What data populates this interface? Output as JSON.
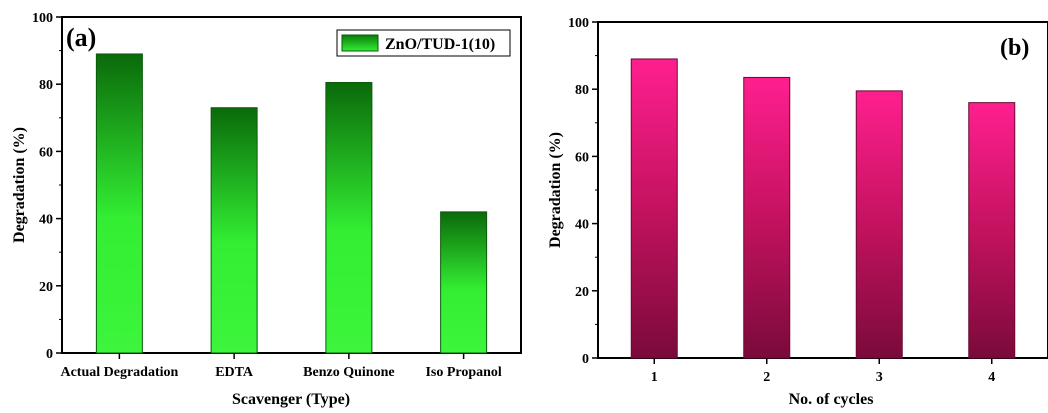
{
  "chart_data": [
    {
      "type": "bar",
      "panel_label": "(a)",
      "title": "",
      "xlabel": "Scavenger (Type)",
      "ylabel": "Degradation (%)",
      "categories": [
        "Actual Degradation",
        "EDTA",
        "Benzo Quinone",
        "Iso Propanol"
      ],
      "series": [
        {
          "name": "ZnO/TUD-1(10)",
          "values": [
            89,
            73,
            80.5,
            42
          ]
        }
      ],
      "ylim": [
        0,
        100
      ],
      "yticks": [
        0,
        20,
        40,
        60,
        80,
        100
      ],
      "grid": false,
      "legend_position": "top-right",
      "colors": {
        "bar_edge": "#0a6a0a",
        "bar_mid": "#33ee33",
        "bar_dark": "#0b7a0b"
      }
    },
    {
      "type": "bar",
      "panel_label": "(b)",
      "title": "",
      "xlabel": "No. of cycles",
      "ylabel": "Degradation (%)",
      "categories": [
        "1",
        "2",
        "3",
        "4"
      ],
      "series": [
        {
          "values": [
            89,
            83.5,
            79.5,
            76
          ]
        }
      ],
      "ylim": [
        0,
        100
      ],
      "yticks": [
        0,
        20,
        40,
        60,
        80,
        100
      ],
      "grid": false,
      "colors": {
        "bar_top": "#ff1f8f",
        "bar_bottom": "#7a0a3a"
      }
    }
  ]
}
